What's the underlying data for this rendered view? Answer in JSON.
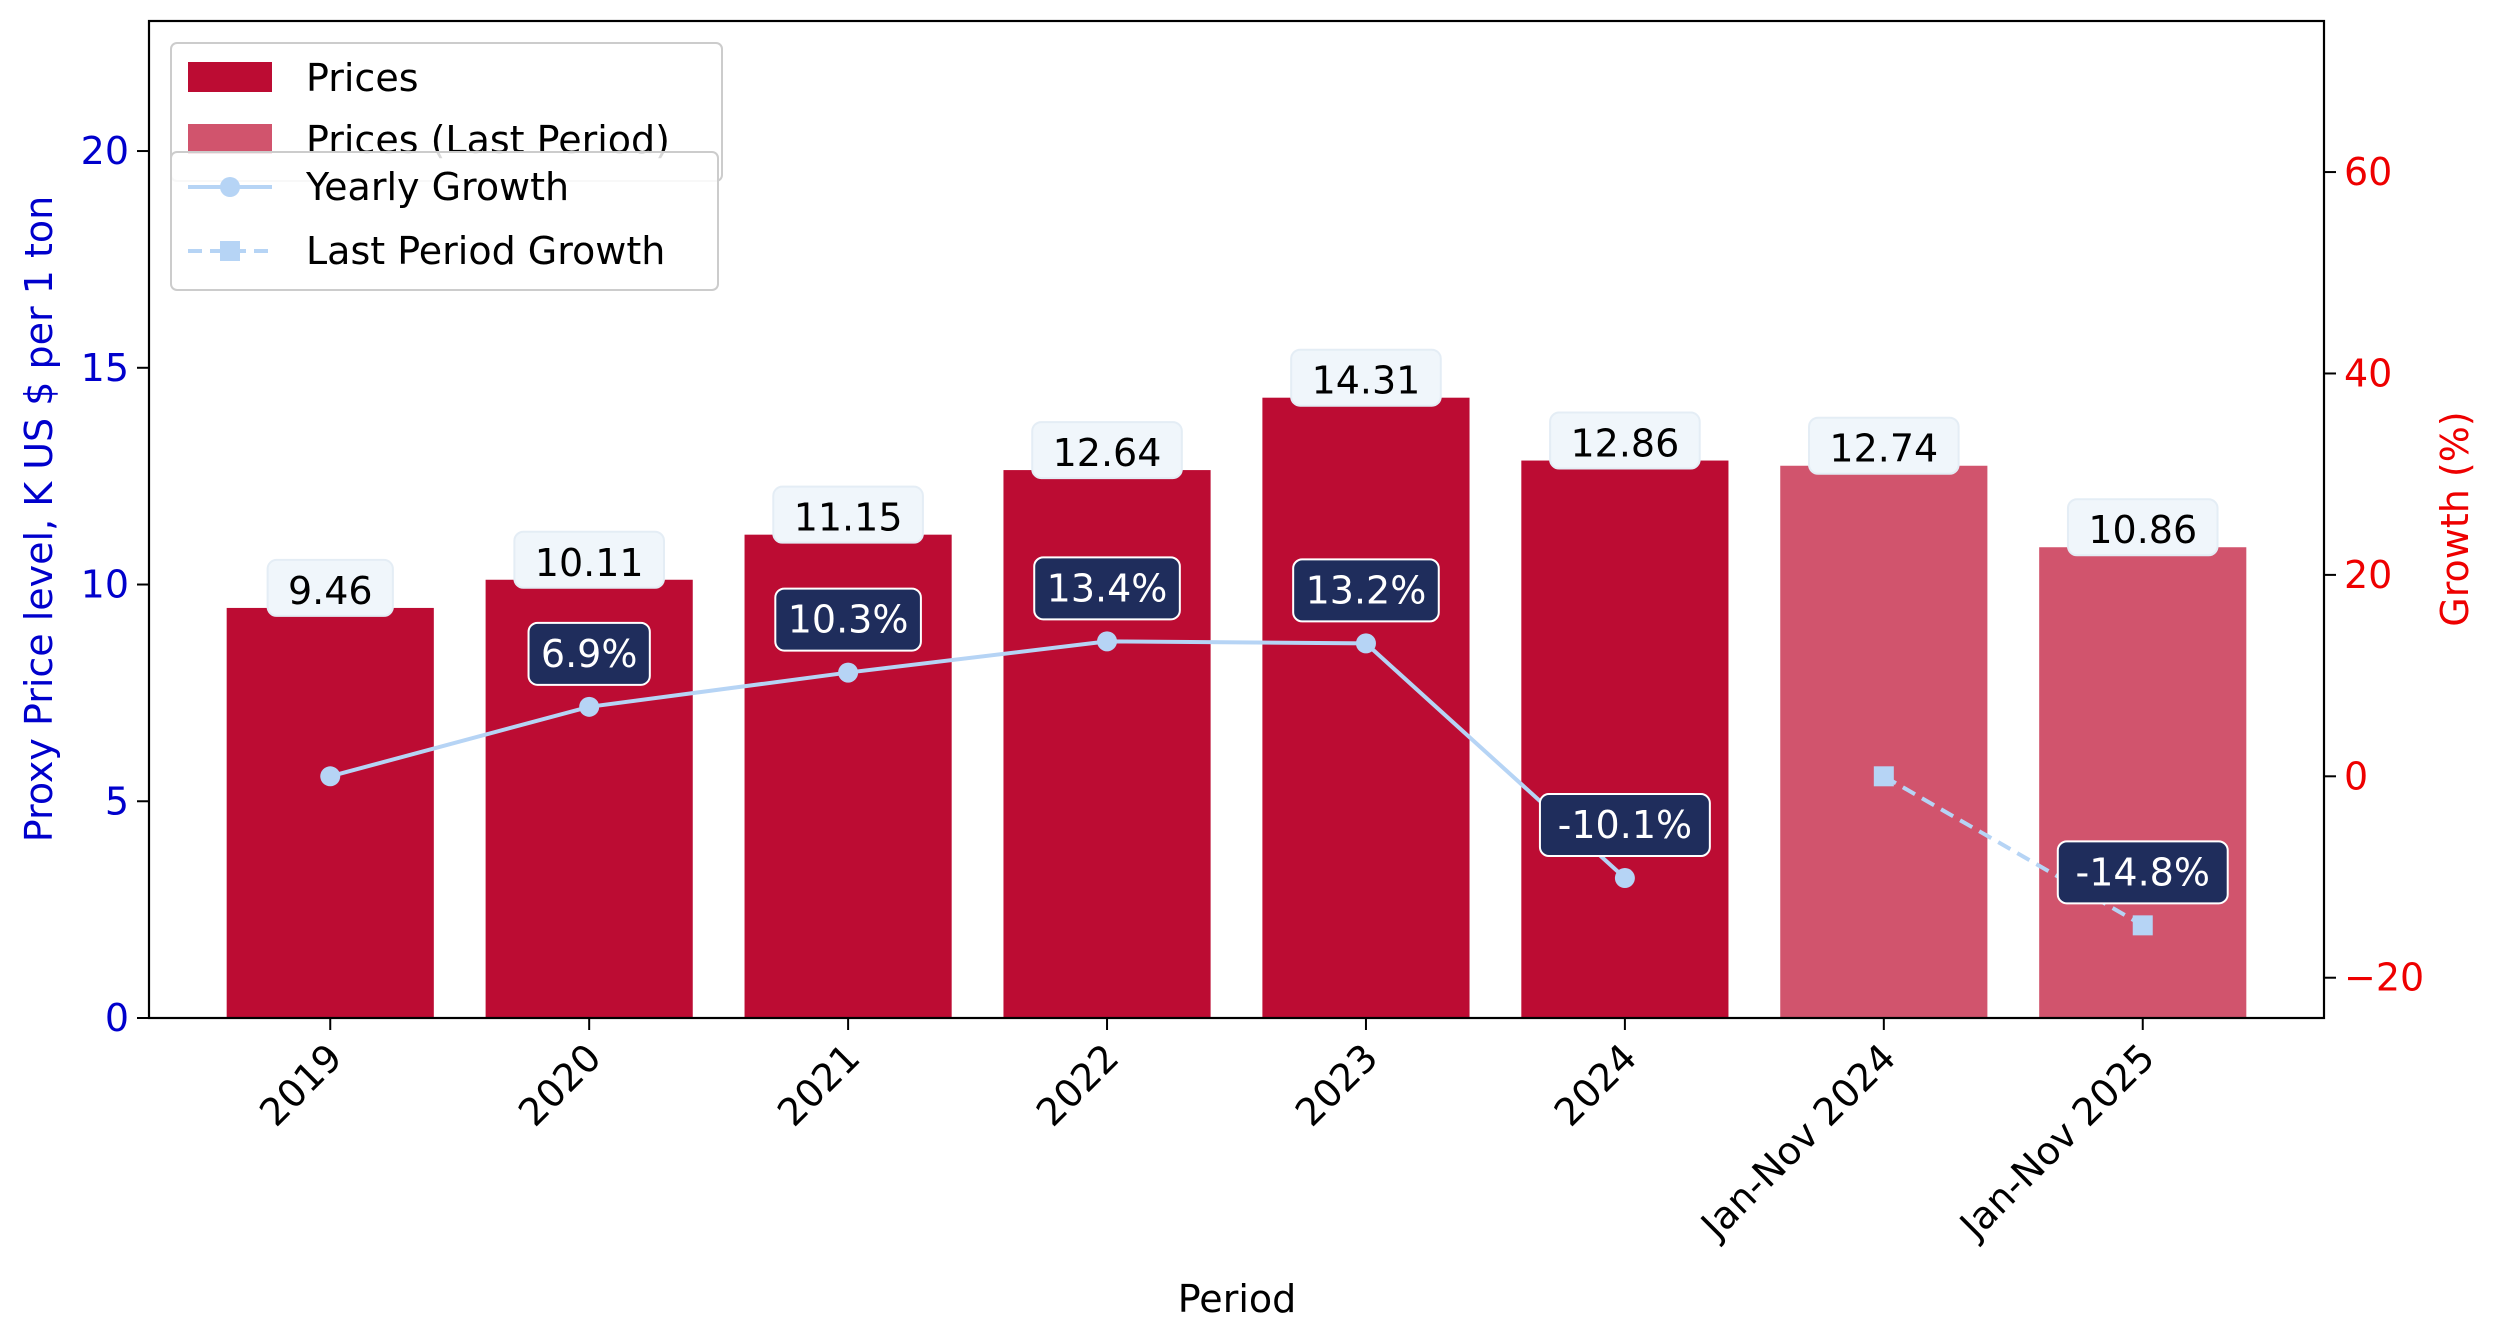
{
  "chart_data": {
    "type": "bar",
    "xlabel": "Period",
    "ylabel_left": "Proxy Price level, K US $ per 1 ton",
    "ylabel_right": "Growth (%)",
    "ylim_left": [
      0,
      23
    ],
    "ylim_right": [
      -24,
      75
    ],
    "yticks_left": [
      "0",
      "5",
      "10",
      "15",
      "20"
    ],
    "yticks_right": [
      "−20",
      "0",
      "20",
      "40",
      "60"
    ],
    "categories": [
      "2019",
      "2020",
      "2021",
      "2022",
      "2023",
      "2024",
      "Jan-Nov 2024",
      "Jan-Nov 2025"
    ],
    "prices": {
      "name": "Prices",
      "values": [
        9.46,
        10.11,
        11.15,
        12.64,
        14.31,
        12.86,
        null,
        null
      ],
      "labels": [
        "9.46",
        "10.11",
        "11.15",
        "12.64",
        "14.31",
        "12.86",
        "",
        ""
      ],
      "color": "#bc0c33"
    },
    "prices_last_period": {
      "name": "Prices (Last Period)",
      "values": [
        null,
        null,
        null,
        null,
        null,
        null,
        12.74,
        10.86
      ],
      "labels": [
        "",
        "",
        "",
        "",
        "",
        "",
        "12.74",
        "10.86"
      ],
      "color": "#d1546d"
    },
    "yearly_growth": {
      "name": "Yearly Growth",
      "values": [
        0,
        6.9,
        10.3,
        13.4,
        13.2,
        -10.1,
        null,
        null
      ],
      "labels": [
        "",
        "6.9%",
        "10.3%",
        "13.4%",
        "13.2%",
        "-10.1%",
        "",
        ""
      ],
      "color": "#b6d4f5"
    },
    "last_period_growth": {
      "name": "Last Period Growth",
      "values": [
        null,
        null,
        null,
        null,
        null,
        null,
        0,
        -14.8
      ],
      "labels": [
        "",
        "",
        "",
        "",
        "",
        "",
        "",
        "-14.8%"
      ],
      "color": "#b6d4f5"
    },
    "colors": {
      "left_axis": "#0000cc",
      "right_axis": "#ee0000",
      "growth_label_bg": "#1f2d5c",
      "price_label_bg": "#f0f6fb"
    },
    "grid": false,
    "legend_placement": "top-left"
  }
}
